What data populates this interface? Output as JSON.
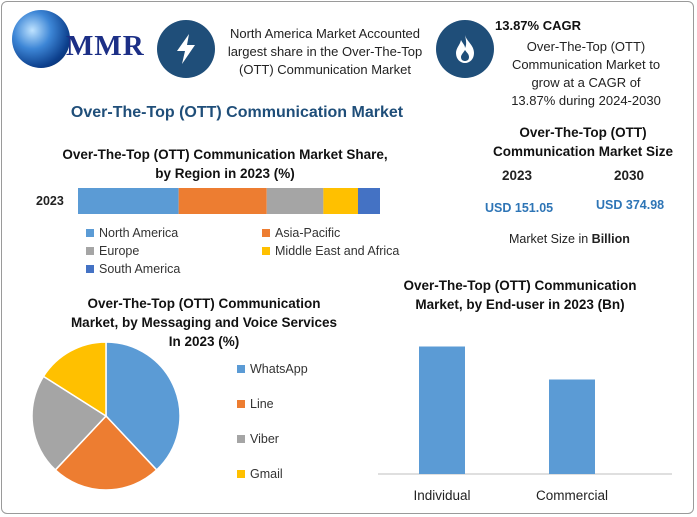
{
  "brand": {
    "logo_text": "MMR"
  },
  "header": {
    "card1_text": "North America Market Accounted largest share in the Over-The-Top (OTT) Communication Market",
    "card2_title": "13.87% CAGR",
    "card2_text": "Over-The-Top (OTT) Communication Market to grow at a CAGR of 13.87% during 2024-2030",
    "icon1": "lightning-icon",
    "icon2": "flame-icon"
  },
  "main_title": "Over-The-Top (OTT) Communication Market",
  "market_size": {
    "title": "Over-The-Top (OTT) Communication Market Size",
    "year1": "2023",
    "year2": "2030",
    "value1": "USD 151.05",
    "value2": "USD 374.98",
    "note_prefix": "Market Size in ",
    "note_bold": "Billion"
  },
  "chart_data": [
    {
      "type": "bar",
      "orientation": "horizontal-stacked",
      "title": "Over-The-Top (OTT) Communication Market Share, by Region in 2023 (%)",
      "categories": [
        "2023"
      ],
      "series": [
        {
          "name": "North America",
          "values": [
            32
          ],
          "color": "#5b9bd5"
        },
        {
          "name": "Asia-Pacific",
          "values": [
            28
          ],
          "color": "#ed7d31"
        },
        {
          "name": "Europe",
          "values": [
            18
          ],
          "color": "#a5a5a5"
        },
        {
          "name": "Middle East and Africa",
          "values": [
            11
          ],
          "color": "#ffc000"
        },
        {
          "name": "South America",
          "values": [
            7
          ],
          "color": "#4472c4"
        }
      ]
    },
    {
      "type": "pie",
      "title": "Over-The-Top (OTT) Communication Market, by Messaging and Voice Services In 2023 (%)",
      "labels": [
        "WhatsApp",
        "Line",
        "Viber",
        "Gmail"
      ],
      "values": [
        38,
        24,
        22,
        16
      ],
      "colors": [
        "#5b9bd5",
        "#ed7d31",
        "#a5a5a5",
        "#ffc000"
      ]
    },
    {
      "type": "bar",
      "title": "Over-The-Top (OTT) Communication Market, by End-user in 2023 (Bn)",
      "categories": [
        "Individual",
        "Commercial"
      ],
      "values": [
        85,
        63
      ],
      "color": "#5b9bd5",
      "ylim": [
        0,
        100
      ]
    }
  ]
}
